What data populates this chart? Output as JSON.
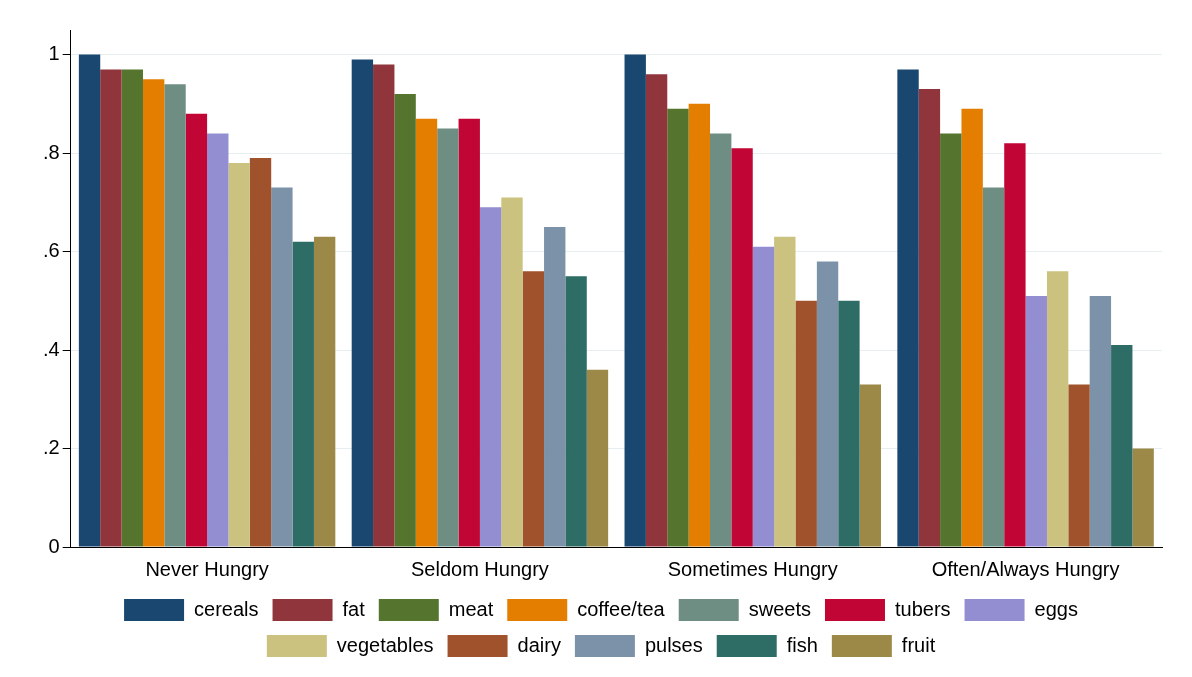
{
  "chart_data": {
    "type": "bar",
    "categories": [
      "Never Hungry",
      "Seldom Hungry",
      "Sometimes Hungry",
      "Often/Always Hungry"
    ],
    "series": [
      {
        "name": "cereals",
        "color": "#1a476f",
        "values": [
          1.0,
          0.99,
          1.0,
          0.97
        ]
      },
      {
        "name": "fat",
        "color": "#90353b",
        "values": [
          0.97,
          0.98,
          0.96,
          0.93
        ]
      },
      {
        "name": "meat",
        "color": "#55752f",
        "values": [
          0.97,
          0.92,
          0.89,
          0.84
        ]
      },
      {
        "name": "coffee/tea",
        "color": "#e37e00",
        "values": [
          0.95,
          0.87,
          0.9,
          0.89
        ]
      },
      {
        "name": "sweets",
        "color": "#6e8e84",
        "values": [
          0.94,
          0.85,
          0.84,
          0.73
        ]
      },
      {
        "name": "tubers",
        "color": "#c10534",
        "values": [
          0.88,
          0.87,
          0.81,
          0.82
        ]
      },
      {
        "name": "eggs",
        "color": "#938dd2",
        "values": [
          0.84,
          0.69,
          0.61,
          0.51
        ]
      },
      {
        "name": "vegetables",
        "color": "#cac27e",
        "values": [
          0.78,
          0.71,
          0.63,
          0.56
        ]
      },
      {
        "name": "dairy",
        "color": "#a0522d",
        "values": [
          0.79,
          0.56,
          0.5,
          0.33
        ]
      },
      {
        "name": "pulses",
        "color": "#7b92a8",
        "values": [
          0.73,
          0.65,
          0.58,
          0.51
        ]
      },
      {
        "name": "fish",
        "color": "#2d6d66",
        "values": [
          0.62,
          0.55,
          0.5,
          0.41
        ]
      },
      {
        "name": "fruit",
        "color": "#9c8847",
        "values": [
          0.63,
          0.36,
          0.33,
          0.2
        ]
      }
    ],
    "ylim": [
      0,
      1.05
    ],
    "yticks": [
      0,
      {
        "value": 0.2,
        "label": ".2"
      },
      {
        "value": 0.4,
        "label": ".4"
      },
      {
        "value": 0.6,
        "label": ".6"
      },
      {
        "value": 0.8,
        "label": ".8"
      },
      {
        "value": 1,
        "label": "1"
      }
    ],
    "grid": "y",
    "legend": "bottom"
  }
}
